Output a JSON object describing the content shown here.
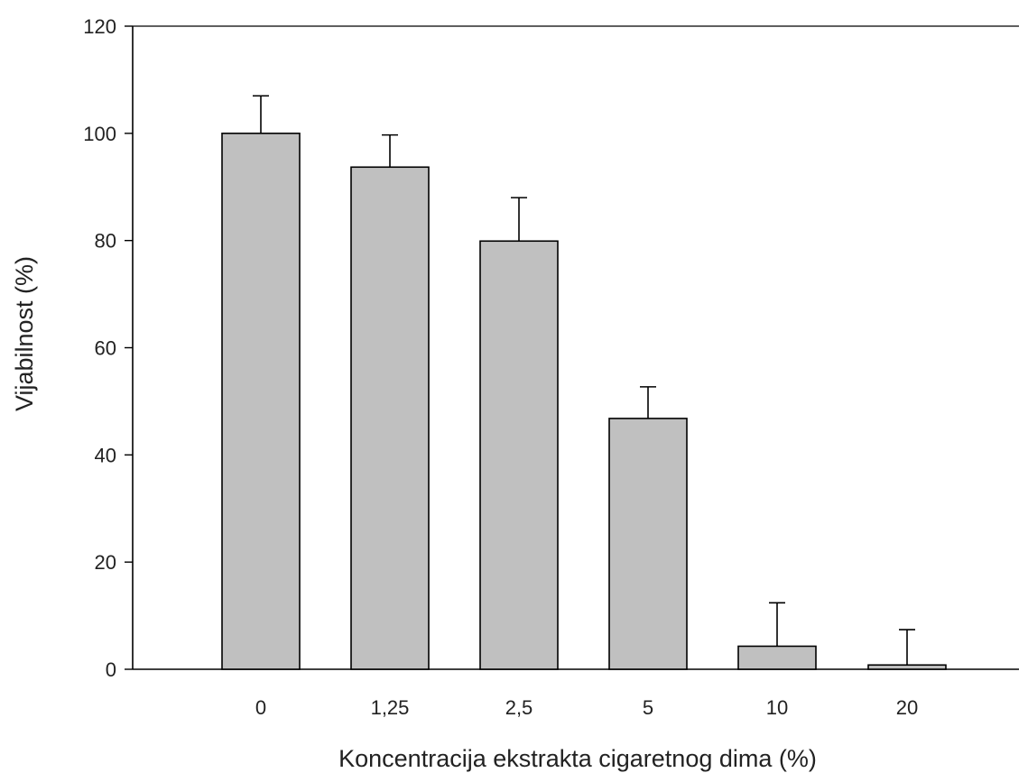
{
  "chart_data": {
    "type": "bar",
    "title": "",
    "xlabel": "Koncentracija ekstrakta cigaretnog dima (%)",
    "ylabel": "Vijabilnost (%)",
    "categories": [
      "0",
      "1,25",
      "2,5",
      "5",
      "10",
      "20"
    ],
    "values": [
      100,
      93.7,
      79.9,
      46.8,
      4.3,
      0.8
    ],
    "error_plus": [
      7,
      6,
      8.1,
      5.9,
      8.1,
      6.6
    ],
    "ylim": [
      0,
      120
    ],
    "yticks": [
      0,
      20,
      40,
      60,
      80,
      100,
      120
    ],
    "grid": false,
    "legend": "none",
    "colors": {
      "bar_fill": "#c0c0c0",
      "bar_stroke": "#000000",
      "axis": "#000000",
      "text": "#222222"
    }
  }
}
